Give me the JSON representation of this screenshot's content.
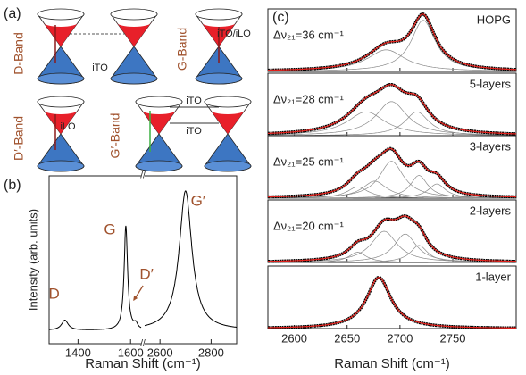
{
  "panel_a": {
    "label": "(a)",
    "bands": [
      {
        "name": "D-Band",
        "phonons": [
          "iTO"
        ]
      },
      {
        "name": "G-Band",
        "phonons": [
          "iTO/iLO"
        ]
      },
      {
        "name": "D′-Band",
        "phonons": [
          "iLO"
        ]
      },
      {
        "name": "G′-Band",
        "phonons": [
          "iTO",
          "iTO"
        ]
      }
    ]
  },
  "chart_data": [
    {
      "label": "(b)",
      "type": "line",
      "xlabel": "Raman Shift (cm⁻¹)",
      "ylabel": "Intensity (arb. units)",
      "xlim": [
        1290,
        2900
      ],
      "xbreak": [
        1640,
        2540
      ],
      "xticks": [
        1400,
        1600,
        2600,
        2800
      ],
      "ylim": [
        0,
        1
      ],
      "baseline": 0.08,
      "color": "#000000",
      "annotation_color": "#a0522d",
      "peaks": [
        {
          "name": "D",
          "center": 1350,
          "width": 15,
          "height": 0.06
        },
        {
          "name": "G",
          "center": 1582,
          "width": 8,
          "height": 0.62
        },
        {
          "name": "D′",
          "center": 1620,
          "width": 8,
          "height": 0.03
        },
        {
          "name": "G′",
          "center": 2700,
          "width": 30,
          "height": 0.83
        }
      ]
    },
    {
      "label": "(c)",
      "type": "line",
      "xlabel": "Raman Shift (cm⁻¹)",
      "xlim": [
        2575,
        2810
      ],
      "xticks": [
        2600,
        2650,
        2700,
        2750
      ],
      "ylim": [
        0,
        1.1
      ],
      "data_color": "#000000",
      "fit_color": "#e0201b",
      "component_color": "#8a8a8a",
      "panels": [
        {
          "name": "HOPG",
          "annotation": "Δν₂₁=36 cm⁻¹",
          "peaks": [
            {
              "center": 2687,
              "width": 22,
              "height": 0.38
            },
            {
              "center": 2722,
              "width": 14,
              "height": 0.9
            }
          ]
        },
        {
          "name": "5-layers",
          "annotation": "Δν₂₁=28 cm⁻¹",
          "peaks": [
            {
              "center": 2668,
              "width": 22,
              "height": 0.42
            },
            {
              "center": 2692,
              "width": 18,
              "height": 0.6
            },
            {
              "center": 2716,
              "width": 14,
              "height": 0.42
            }
          ]
        },
        {
          "name": "3-layers",
          "annotation": "Δν₂₁=25 cm⁻¹",
          "peaks": [
            {
              "center": 2660,
              "width": 12,
              "height": 0.2
            },
            {
              "center": 2676,
              "width": 14,
              "height": 0.3
            },
            {
              "center": 2692,
              "width": 14,
              "height": 0.65
            },
            {
              "center": 2718,
              "width": 10,
              "height": 0.4
            },
            {
              "center": 2735,
              "width": 10,
              "height": 0.25
            }
          ]
        },
        {
          "name": "2-layers",
          "annotation": "Δν₂₁=20 cm⁻¹",
          "peaks": [
            {
              "center": 2660,
              "width": 10,
              "height": 0.18
            },
            {
              "center": 2685,
              "width": 15,
              "height": 0.55
            },
            {
              "center": 2705,
              "width": 13,
              "height": 0.5
            },
            {
              "center": 2718,
              "width": 10,
              "height": 0.3
            }
          ]
        },
        {
          "name": "1-layer",
          "peaks": [
            {
              "center": 2680,
              "width": 14,
              "height": 0.9
            }
          ]
        }
      ]
    }
  ]
}
